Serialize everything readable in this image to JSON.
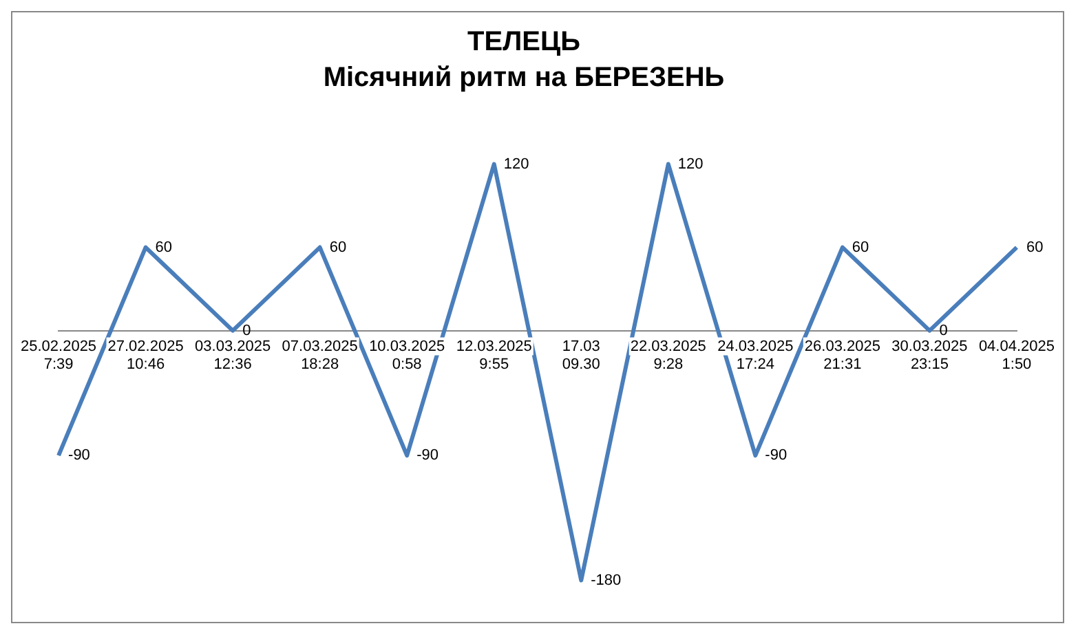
{
  "chart_data": {
    "type": "line",
    "title": "ТЕЛЕЦЬ",
    "subtitle": "Місячний ритм на БЕРЕЗЕНЬ",
    "categories": [
      "25.02.2025\n7:39",
      "27.02.2025\n10:46",
      "03.03.2025\n12:36",
      "07.03.2025\n18:28",
      "10.03.2025\n0:58",
      "12.03.2025\n9:55",
      "17.03\n09.30",
      "22.03.2025\n9:28",
      "24.03.2025\n17:24",
      "26.03.2025\n21:31",
      "30.03.2025\n23:15",
      "04.04.2025\n1:50"
    ],
    "series": [
      {
        "color": "#4a7ebb",
        "values": [
          -90,
          60,
          0,
          60,
          -90,
          120,
          -180,
          120,
          -90,
          60,
          0,
          60
        ]
      }
    ],
    "data_labels": true,
    "grid": false,
    "legend": false,
    "marker": "none",
    "line_style": "solid"
  }
}
